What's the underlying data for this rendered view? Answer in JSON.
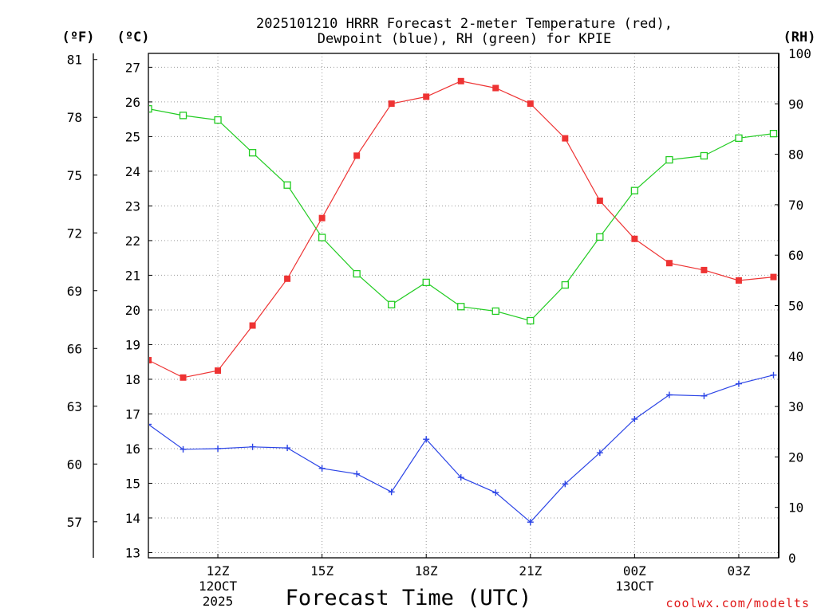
{
  "page": {
    "title_line1": "2025101210 HRRR Forecast 2-meter Temperature (red),",
    "title_line2": "Dewpoint (blue), RH (green) for KPIE",
    "unit_f": "(ºF)",
    "unit_c": "(ºC)",
    "unit_rh": "(RH)",
    "credit": "coolwx.com/modelts"
  },
  "chart_data": {
    "type": "line",
    "title": "2025101210 HRRR Forecast 2-meter Temperature (red), Dewpoint (blue), RH (green) for KPIE",
    "xlabel": "Forecast Time (UTC)",
    "x": [
      0,
      1,
      2,
      3,
      4,
      5,
      6,
      7,
      8,
      9,
      10,
      11,
      12,
      13,
      14,
      15,
      16,
      17,
      18
    ],
    "x_meaning": "forecast hour from 10Z 12 Oct 2025",
    "xlim": [
      0,
      18.15
    ],
    "x_ticks": [
      {
        "x": 2,
        "label": "12Z",
        "sub1": "12OCT",
        "sub2": "2025"
      },
      {
        "x": 5,
        "label": "15Z",
        "sub1": "",
        "sub2": ""
      },
      {
        "x": 8,
        "label": "18Z",
        "sub1": "",
        "sub2": ""
      },
      {
        "x": 11,
        "label": "21Z",
        "sub1": "",
        "sub2": ""
      },
      {
        "x": 14,
        "label": "00Z",
        "sub1": "13OCT",
        "sub2": ""
      },
      {
        "x": 17,
        "label": "03Z",
        "sub1": "",
        "sub2": ""
      }
    ],
    "y_celsius": {
      "label": "(ºC)",
      "range": [
        12.85,
        27.4
      ],
      "ticks": [
        13,
        14,
        15,
        16,
        17,
        18,
        19,
        20,
        21,
        22,
        23,
        24,
        25,
        26,
        27
      ]
    },
    "y_fahrenheit": {
      "label": "(ºF)",
      "ticks": [
        57,
        60,
        63,
        66,
        69,
        72,
        75,
        78,
        81
      ]
    },
    "y_rh": {
      "label": "(RH)",
      "range": [
        0,
        100
      ],
      "ticks": [
        0,
        10,
        20,
        30,
        40,
        50,
        60,
        70,
        80,
        90,
        100
      ]
    },
    "grid": true,
    "series": [
      {
        "name": "Temperature",
        "axis": "celsius",
        "color": "#ee3333",
        "marker": "filled-square",
        "values": [
          18.55,
          18.05,
          18.25,
          19.55,
          20.9,
          22.65,
          24.45,
          25.95,
          26.15,
          26.6,
          26.4,
          25.95,
          24.95,
          23.15,
          22.05,
          21.35,
          21.15,
          20.85,
          20.95
        ]
      },
      {
        "name": "Dewpoint",
        "axis": "celsius",
        "color": "#2b44e6",
        "marker": "plus",
        "values": [
          16.7,
          15.98,
          16.0,
          16.05,
          16.02,
          15.43,
          15.27,
          14.75,
          16.27,
          15.17,
          14.73,
          13.88,
          14.98,
          15.88,
          16.85,
          17.55,
          17.52,
          17.87,
          18.12
        ]
      },
      {
        "name": "RH",
        "axis": "rh",
        "color": "#22cc22",
        "marker": "open-square",
        "values": [
          89,
          87.7,
          86.8,
          80.3,
          73.9,
          63.5,
          56.3,
          50.2,
          54.6,
          49.8,
          48.9,
          47.0,
          54.1,
          63.6,
          72.8,
          78.9,
          79.7,
          83.2,
          84.1
        ]
      }
    ]
  }
}
